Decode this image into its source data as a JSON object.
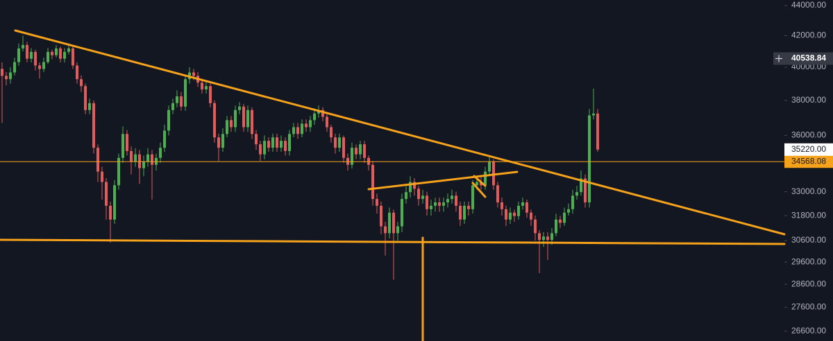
{
  "chart_data": {
    "type": "candlestick",
    "log_scale": true,
    "ylim": [
      26200,
      44380
    ],
    "yticks": [
      {
        "value": 44000,
        "label": "44000.00"
      },
      {
        "value": 42000,
        "label": "42000.00"
      },
      {
        "value": 40000,
        "label": "40000.00"
      },
      {
        "value": 38000,
        "label": "38000.00"
      },
      {
        "value": 36000,
        "label": "36000.00"
      },
      {
        "value": 33000,
        "label": "33000.00"
      },
      {
        "value": 31800,
        "label": "31800.00"
      },
      {
        "value": 30600,
        "label": "30600.00"
      },
      {
        "value": 29600,
        "label": "29600.00"
      },
      {
        "value": 28600,
        "label": "28600.00"
      },
      {
        "value": 27600,
        "label": "27600.00"
      },
      {
        "value": 26600,
        "label": "26600.00"
      }
    ],
    "up_color": "#4caf50",
    "down_color": "#e35b5b",
    "open": [
      39900,
      39470,
      39270,
      39680,
      40320,
      41180,
      41400,
      40530,
      40960,
      40110,
      39890,
      40320,
      40960,
      40750,
      41180,
      40530,
      40960,
      41180,
      40110,
      39270,
      38850,
      37440,
      37840,
      35320,
      34040,
      33500,
      32290,
      31610,
      33330,
      34770,
      36080,
      35140,
      34580,
      34960,
      34220,
      34580,
      34960,
      34400,
      34770,
      35320,
      36270,
      37440,
      37840,
      38240,
      37640,
      39270,
      39680,
      39470,
      39060,
      38650,
      38850,
      37840,
      35890,
      35320,
      36080,
      36860,
      36460,
      37440,
      37640,
      36460,
      37440,
      36080,
      35510,
      34960,
      35700,
      35320,
      35890,
      35320,
      35700,
      35140,
      36080,
      36460,
      36080,
      36660,
      36460,
      36860,
      37240,
      37440,
      37050,
      36460,
      35890,
      35320,
      35890,
      34770,
      34400,
      35320,
      34960,
      35510,
      34770,
      34400,
      32630,
      32290,
      31280,
      30950,
      31950,
      30950,
      31280,
      32630,
      32980,
      33500,
      33150,
      32630,
      32800,
      32120,
      32290,
      32460,
      32290,
      32460,
      32630,
      32800,
      32290,
      31610,
      32290,
      32120,
      33330,
      33500,
      33330,
      34040,
      34580,
      33330,
      32460,
      32120,
      31610,
      31950,
      31780,
      32290,
      32460,
      31950,
      31610,
      30950,
      30630,
      30790,
      30630,
      30950,
      31610,
      31450,
      31950,
      32120,
      32800,
      32980,
      33680,
      32460,
      37130,
      37240
    ],
    "high": [
      40300,
      39700,
      40000,
      40600,
      41500,
      42000,
      41600,
      41200,
      41100,
      40300,
      40600,
      41200,
      41100,
      41400,
      41300,
      41200,
      41500,
      41300,
      40300,
      39500,
      39000,
      38100,
      38000,
      35500,
      34300,
      33700,
      32500,
      33600,
      35000,
      36500,
      36300,
      35400,
      35300,
      35200,
      34900,
      35300,
      35200,
      35000,
      35600,
      36600,
      37700,
      38100,
      38600,
      38500,
      39500,
      40000,
      39900,
      39700,
      39300,
      39100,
      39000,
      38000,
      36100,
      36400,
      37100,
      37100,
      37700,
      37900,
      37800,
      37700,
      37600,
      36300,
      35700,
      36000,
      35900,
      36100,
      36100,
      36000,
      35900,
      36300,
      36700,
      36700,
      36900,
      36900,
      37100,
      37500,
      37700,
      37600,
      37200,
      36600,
      36100,
      36100,
      36000,
      35000,
      35600,
      35500,
      35700,
      35700,
      34900,
      34600,
      32900,
      32500,
      31500,
      32200,
      32100,
      31500,
      32900,
      33300,
      33800,
      33700,
      33300,
      33100,
      33000,
      32600,
      32700,
      32700,
      32700,
      32900,
      33100,
      33000,
      32500,
      32500,
      32500,
      33600,
      33800,
      33800,
      34300,
      34900,
      34700,
      33500,
      32700,
      32300,
      32200,
      32100,
      32500,
      32700,
      32600,
      32100,
      31800,
      31100,
      31000,
      31000,
      31200,
      31900,
      31800,
      32200,
      32400,
      33100,
      33300,
      34100,
      33900,
      37500,
      38700,
      37500
    ],
    "low": [
      36700,
      38900,
      39000,
      39500,
      40100,
      41000,
      40300,
      40300,
      39800,
      39300,
      39700,
      40200,
      40500,
      40600,
      40300,
      40300,
      40800,
      39900,
      39000,
      38500,
      37200,
      37200,
      35000,
      33500,
      32600,
      31600,
      30500,
      31400,
      33100,
      34500,
      34900,
      33900,
      34300,
      33400,
      33800,
      34300,
      32600,
      34100,
      34500,
      35100,
      36000,
      37200,
      37600,
      37400,
      37400,
      39000,
      39200,
      38800,
      38400,
      38400,
      37600,
      35600,
      34600,
      35100,
      35900,
      36200,
      36200,
      37200,
      36200,
      36200,
      35800,
      35200,
      34600,
      34700,
      35100,
      35100,
      35100,
      35100,
      34900,
      34900,
      35900,
      35800,
      35900,
      36200,
      36200,
      36600,
      37000,
      36800,
      36200,
      35600,
      35000,
      35100,
      34500,
      34100,
      34200,
      34700,
      34700,
      34500,
      34100,
      32300,
      31900,
      30900,
      29900,
      30700,
      28800,
      30600,
      31000,
      32400,
      32700,
      32800,
      32300,
      32400,
      31800,
      31800,
      32000,
      32000,
      32000,
      32200,
      32400,
      32000,
      31300,
      31400,
      31800,
      31900,
      33100,
      33100,
      33100,
      33800,
      33100,
      32200,
      31800,
      31300,
      31400,
      31500,
      31600,
      32100,
      31700,
      31300,
      30600,
      29100,
      30300,
      29700,
      30400,
      30800,
      31200,
      31300,
      31800,
      31900,
      32600,
      32800,
      32200,
      32200,
      36900,
      35100
    ],
    "close": [
      39470,
      39270,
      39680,
      40320,
      41180,
      41400,
      40530,
      40960,
      40110,
      39890,
      40320,
      40960,
      40750,
      41180,
      40530,
      40960,
      41180,
      40110,
      39270,
      38850,
      37440,
      37840,
      35320,
      34040,
      33500,
      32290,
      31610,
      33330,
      34770,
      36080,
      35140,
      34580,
      34960,
      34220,
      34580,
      34960,
      34400,
      34770,
      35320,
      36270,
      37440,
      37840,
      38240,
      37640,
      39270,
      39680,
      39470,
      39060,
      38650,
      38850,
      37840,
      35890,
      35320,
      36080,
      36860,
      36460,
      37440,
      37640,
      36460,
      37440,
      36080,
      35510,
      34960,
      35700,
      35320,
      35890,
      35320,
      35700,
      35140,
      36080,
      36460,
      36080,
      36660,
      36460,
      36860,
      37240,
      37440,
      37050,
      36460,
      35890,
      35320,
      35890,
      34770,
      34400,
      35320,
      34960,
      35510,
      34770,
      34400,
      32630,
      32290,
      31280,
      30950,
      31950,
      30950,
      31280,
      32630,
      32980,
      33500,
      33150,
      32630,
      32800,
      32120,
      32290,
      32460,
      32290,
      32460,
      32630,
      32800,
      32290,
      31610,
      32290,
      32120,
      33330,
      33500,
      33330,
      34040,
      34580,
      33330,
      32460,
      32120,
      31610,
      31950,
      31780,
      32290,
      32460,
      31950,
      31610,
      30950,
      30630,
      30790,
      30630,
      30950,
      31610,
      31450,
      31950,
      32120,
      32800,
      32980,
      33680,
      32460,
      37130,
      37240,
      35220
    ],
    "crosshair_price": {
      "value": 40538.84,
      "label": "40538.84"
    },
    "last_price": {
      "value": 35220,
      "label": "35220.00"
    },
    "horizontal_line": {
      "value": 34568.08,
      "label": "34568.08",
      "color": "#f7a21b"
    }
  }
}
